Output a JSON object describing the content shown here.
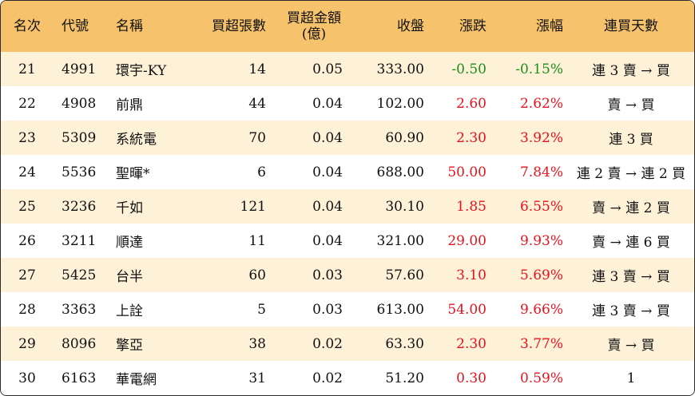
{
  "headers": {
    "rank": "名次",
    "code": "代號",
    "name": "名稱",
    "net_lots": "買超張數",
    "net_amount_line1": "買超金額",
    "net_amount_line2": "(億)",
    "close": "收盤",
    "change": "漲跌",
    "change_pct": "漲幅",
    "streak": "連買天數"
  },
  "colors": {
    "header_bg": "#f6c26b",
    "stripe_bg": "#fdf1d8",
    "up": "#e8121d",
    "down": "#1b8e1b"
  },
  "rows": [
    {
      "rank": "21",
      "code": "4991",
      "name": "環宇-KY",
      "net_lots": "14",
      "net_amount": "0.05",
      "close": "333.00",
      "change": "-0.50",
      "change_pct": "-0.15%",
      "direction": "down",
      "streak": "連 3 賣 → 買"
    },
    {
      "rank": "22",
      "code": "4908",
      "name": "前鼎",
      "net_lots": "44",
      "net_amount": "0.04",
      "close": "102.00",
      "change": "2.60",
      "change_pct": "2.62%",
      "direction": "up",
      "streak": "賣 → 買"
    },
    {
      "rank": "23",
      "code": "5309",
      "name": "系統電",
      "net_lots": "70",
      "net_amount": "0.04",
      "close": "60.90",
      "change": "2.30",
      "change_pct": "3.92%",
      "direction": "up",
      "streak": "連 3 買"
    },
    {
      "rank": "24",
      "code": "5536",
      "name": "聖暉*",
      "net_lots": "6",
      "net_amount": "0.04",
      "close": "688.00",
      "change": "50.00",
      "change_pct": "7.84%",
      "direction": "up",
      "streak": "連 2 賣 → 連 2 買"
    },
    {
      "rank": "25",
      "code": "3236",
      "name": "千如",
      "net_lots": "121",
      "net_amount": "0.04",
      "close": "30.10",
      "change": "1.85",
      "change_pct": "6.55%",
      "direction": "up",
      "streak": "賣 → 連 2 買"
    },
    {
      "rank": "26",
      "code": "3211",
      "name": "順達",
      "net_lots": "11",
      "net_amount": "0.04",
      "close": "321.00",
      "change": "29.00",
      "change_pct": "9.93%",
      "direction": "up",
      "streak": "賣 → 連 6 買"
    },
    {
      "rank": "27",
      "code": "5425",
      "name": "台半",
      "net_lots": "60",
      "net_amount": "0.03",
      "close": "57.60",
      "change": "3.10",
      "change_pct": "5.69%",
      "direction": "up",
      "streak": "連 3 賣 → 買"
    },
    {
      "rank": "28",
      "code": "3363",
      "name": "上詮",
      "net_lots": "5",
      "net_amount": "0.03",
      "close": "613.00",
      "change": "54.00",
      "change_pct": "9.66%",
      "direction": "up",
      "streak": "連 3 賣 → 買"
    },
    {
      "rank": "29",
      "code": "8096",
      "name": "擎亞",
      "net_lots": "38",
      "net_amount": "0.02",
      "close": "63.30",
      "change": "2.30",
      "change_pct": "3.77%",
      "direction": "up",
      "streak": "賣 → 買"
    },
    {
      "rank": "30",
      "code": "6163",
      "name": "華電網",
      "net_lots": "31",
      "net_amount": "0.02",
      "close": "51.20",
      "change": "0.30",
      "change_pct": "0.59%",
      "direction": "up",
      "streak": "1"
    }
  ]
}
